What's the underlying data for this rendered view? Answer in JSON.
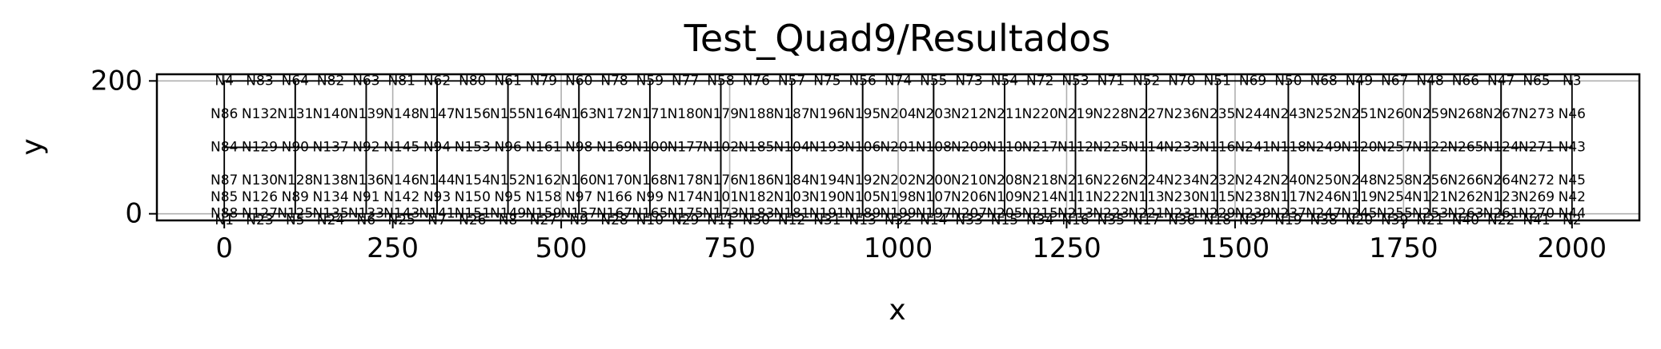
{
  "chart_data": {
    "type": "scatter",
    "title": "Test_Quad9/Resultados",
    "xlabel": "x",
    "ylabel": "y",
    "xlim": [
      -100,
      2100
    ],
    "ylim": [
      -10,
      210
    ],
    "xticks": [
      0,
      250,
      500,
      750,
      1000,
      1250,
      1500,
      1750,
      2000
    ],
    "yticks": [
      0,
      200
    ],
    "grid": true,
    "mesh": {
      "x_start": 0,
      "x_end": 2000,
      "y_start": 0,
      "y_end": 200,
      "element_columns": 19,
      "element_rows": 2
    },
    "node_rows": [
      {
        "y": 200,
        "labels": [
          "N4",
          "N83",
          "N64",
          "N82",
          "N63",
          "N81",
          "N62",
          "N80",
          "N61",
          "N79",
          "N60",
          "N78",
          "N59",
          "N77",
          "N58",
          "N76",
          "N57",
          "N75",
          "N56",
          "N74",
          "N55",
          "N73",
          "N54",
          "N72",
          "N53",
          "N71",
          "N52",
          "N70",
          "N51",
          "N69",
          "N50",
          "N68",
          "N49",
          "N67",
          "N48",
          "N66",
          "N47",
          "N65",
          "N3"
        ]
      },
      {
        "y": 150,
        "labels": [
          "N86",
          "N132",
          "N131",
          "N140",
          "N139",
          "N148",
          "N147",
          "N156",
          "N155",
          "N164",
          "N163",
          "N172",
          "N171",
          "N180",
          "N179",
          "N188",
          "N187",
          "N196",
          "N195",
          "N204",
          "N203",
          "N212",
          "N211",
          "N220",
          "N219",
          "N228",
          "N227",
          "N236",
          "N235",
          "N244",
          "N243",
          "N252",
          "N251",
          "N260",
          "N259",
          "N268",
          "N267",
          "N273",
          "N46"
        ]
      },
      {
        "y": 100,
        "labels": [
          "N84",
          "N129",
          "N90",
          "N137",
          "N92",
          "N145",
          "N94",
          "N153",
          "N96",
          "N161",
          "N98",
          "N169",
          "N100",
          "N177",
          "N102",
          "N185",
          "N104",
          "N193",
          "N106",
          "N201",
          "N108",
          "N209",
          "N110",
          "N217",
          "N112",
          "N225",
          "N114",
          "N233",
          "N116",
          "N241",
          "N118",
          "N249",
          "N120",
          "N257",
          "N122",
          "N265",
          "N124",
          "N271",
          "N43"
        ]
      },
      {
        "y": 50,
        "labels": [
          "N87",
          "N130",
          "N128",
          "N138",
          "N136",
          "N146",
          "N144",
          "N154",
          "N152",
          "N162",
          "N160",
          "N170",
          "N168",
          "N178",
          "N176",
          "N186",
          "N184",
          "N194",
          "N192",
          "N202",
          "N200",
          "N210",
          "N208",
          "N218",
          "N216",
          "N226",
          "N224",
          "N234",
          "N232",
          "N242",
          "N240",
          "N250",
          "N248",
          "N258",
          "N256",
          "N266",
          "N264",
          "N272",
          "N45"
        ]
      },
      {
        "y": 25,
        "labels": [
          "N85",
          "N126",
          "N89",
          "N134",
          "N91",
          "N142",
          "N93",
          "N150",
          "N95",
          "N158",
          "N97",
          "N166",
          "N99",
          "N174",
          "N101",
          "N182",
          "N103",
          "N190",
          "N105",
          "N198",
          "N107",
          "N206",
          "N109",
          "N214",
          "N111",
          "N222",
          "N113",
          "N230",
          "N115",
          "N238",
          "N117",
          "N246",
          "N119",
          "N254",
          "N121",
          "N262",
          "N123",
          "N269",
          "N42"
        ]
      },
      {
        "y": 0,
        "labels": [
          "N88",
          "N127",
          "N125",
          "N135",
          "N133",
          "N143",
          "N141",
          "N151",
          "N149",
          "N159",
          "N157",
          "N167",
          "N165",
          "N175",
          "N173",
          "N183",
          "N181",
          "N191",
          "N189",
          "N199",
          "N197",
          "N207",
          "N205",
          "N215",
          "N213",
          "N223",
          "N221",
          "N231",
          "N229",
          "N239",
          "N237",
          "N247",
          "N245",
          "N255",
          "N253",
          "N263",
          "N261",
          "N270",
          "N44"
        ]
      },
      {
        "y": -10,
        "labels": [
          "N1",
          "N23",
          "N5",
          "N24",
          "N6",
          "N25",
          "N7",
          "N26",
          "N8",
          "N27",
          "N9",
          "N28",
          "N10",
          "N29",
          "N11",
          "N30",
          "N12",
          "N31",
          "N13",
          "N32",
          "N14",
          "N33",
          "N15",
          "N34",
          "N16",
          "N35",
          "N17",
          "N36",
          "N18",
          "N37",
          "N19",
          "N38",
          "N20",
          "N39",
          "N21",
          "N40",
          "N22",
          "N41",
          "N2"
        ]
      }
    ]
  }
}
